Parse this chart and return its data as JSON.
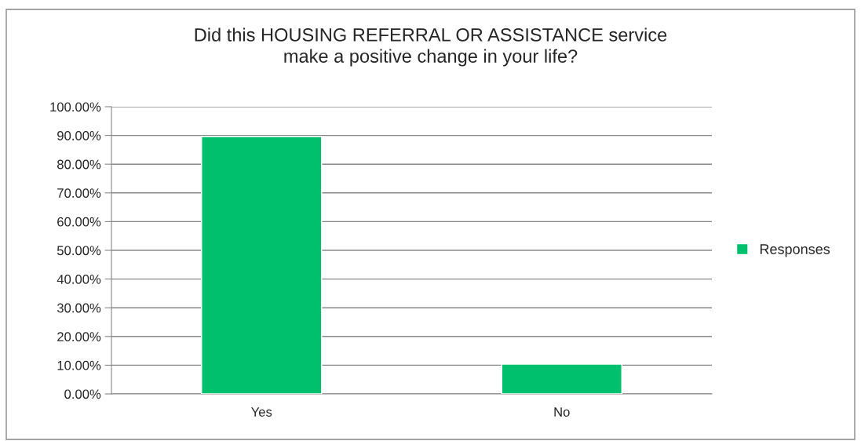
{
  "chart_data": {
    "type": "bar",
    "title": "Did this HOUSING REFERRAL OR ASSISTANCE service\nmake a positive change in your life?",
    "categories": [
      "Yes",
      "No"
    ],
    "series": [
      {
        "name": "Responses",
        "color": "#00c06e",
        "values": [
          89.6,
          10.4
        ]
      }
    ],
    "ylim": [
      0,
      100
    ],
    "yticks": [
      {
        "value": 0,
        "label": "0.00%"
      },
      {
        "value": 10,
        "label": "10.00%"
      },
      {
        "value": 20,
        "label": "20.00%"
      },
      {
        "value": 30,
        "label": "30.00%"
      },
      {
        "value": 40,
        "label": "40.00%"
      },
      {
        "value": 50,
        "label": "50.00%"
      },
      {
        "value": 60,
        "label": "60.00%"
      },
      {
        "value": 70,
        "label": "70.00%"
      },
      {
        "value": 80,
        "label": "80.00%"
      },
      {
        "value": 90,
        "label": "90.00%"
      },
      {
        "value": 100,
        "label": "100.00%"
      }
    ],
    "grid": "y",
    "legend": "right"
  }
}
